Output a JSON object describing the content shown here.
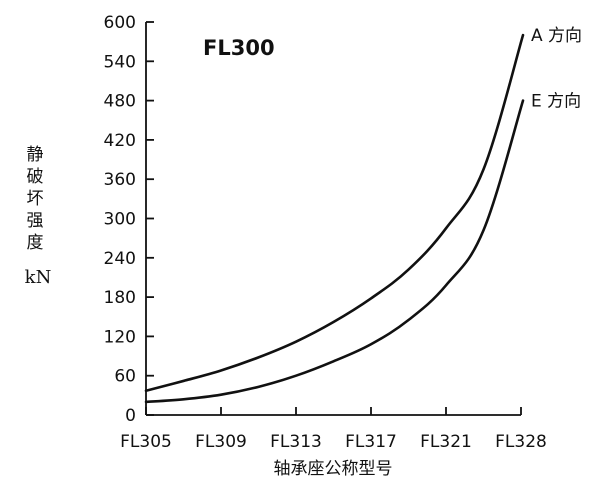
{
  "chart_data": {
    "type": "line",
    "title": "FL300",
    "xlabel": "轴承座公称型号",
    "ylabel": "静破坏强度",
    "yunit": "kN",
    "categories": [
      "FL305",
      "FL309",
      "FL313",
      "FL317",
      "FL321",
      "FL328"
    ],
    "ylim": [
      0,
      600
    ],
    "yticks": [
      0,
      60,
      120,
      180,
      240,
      300,
      360,
      420,
      480,
      540,
      600
    ],
    "grid": false,
    "legend": "none",
    "series": [
      {
        "name": "A 方向",
        "x": [
          0,
          0.5,
          1,
          1.5,
          2,
          2.5,
          3,
          3.5,
          4,
          4.5,
          5
        ],
        "values": [
          37,
          52,
          68,
          88,
          112,
          142,
          178,
          222,
          285,
          375,
          580
        ]
      },
      {
        "name": "E 方向",
        "x": [
          0,
          0.5,
          1,
          1.5,
          2,
          2.5,
          3,
          3.5,
          4,
          4.5,
          5
        ],
        "values": [
          20,
          24,
          31,
          43,
          60,
          82,
          108,
          145,
          198,
          282,
          480
        ]
      }
    ]
  }
}
